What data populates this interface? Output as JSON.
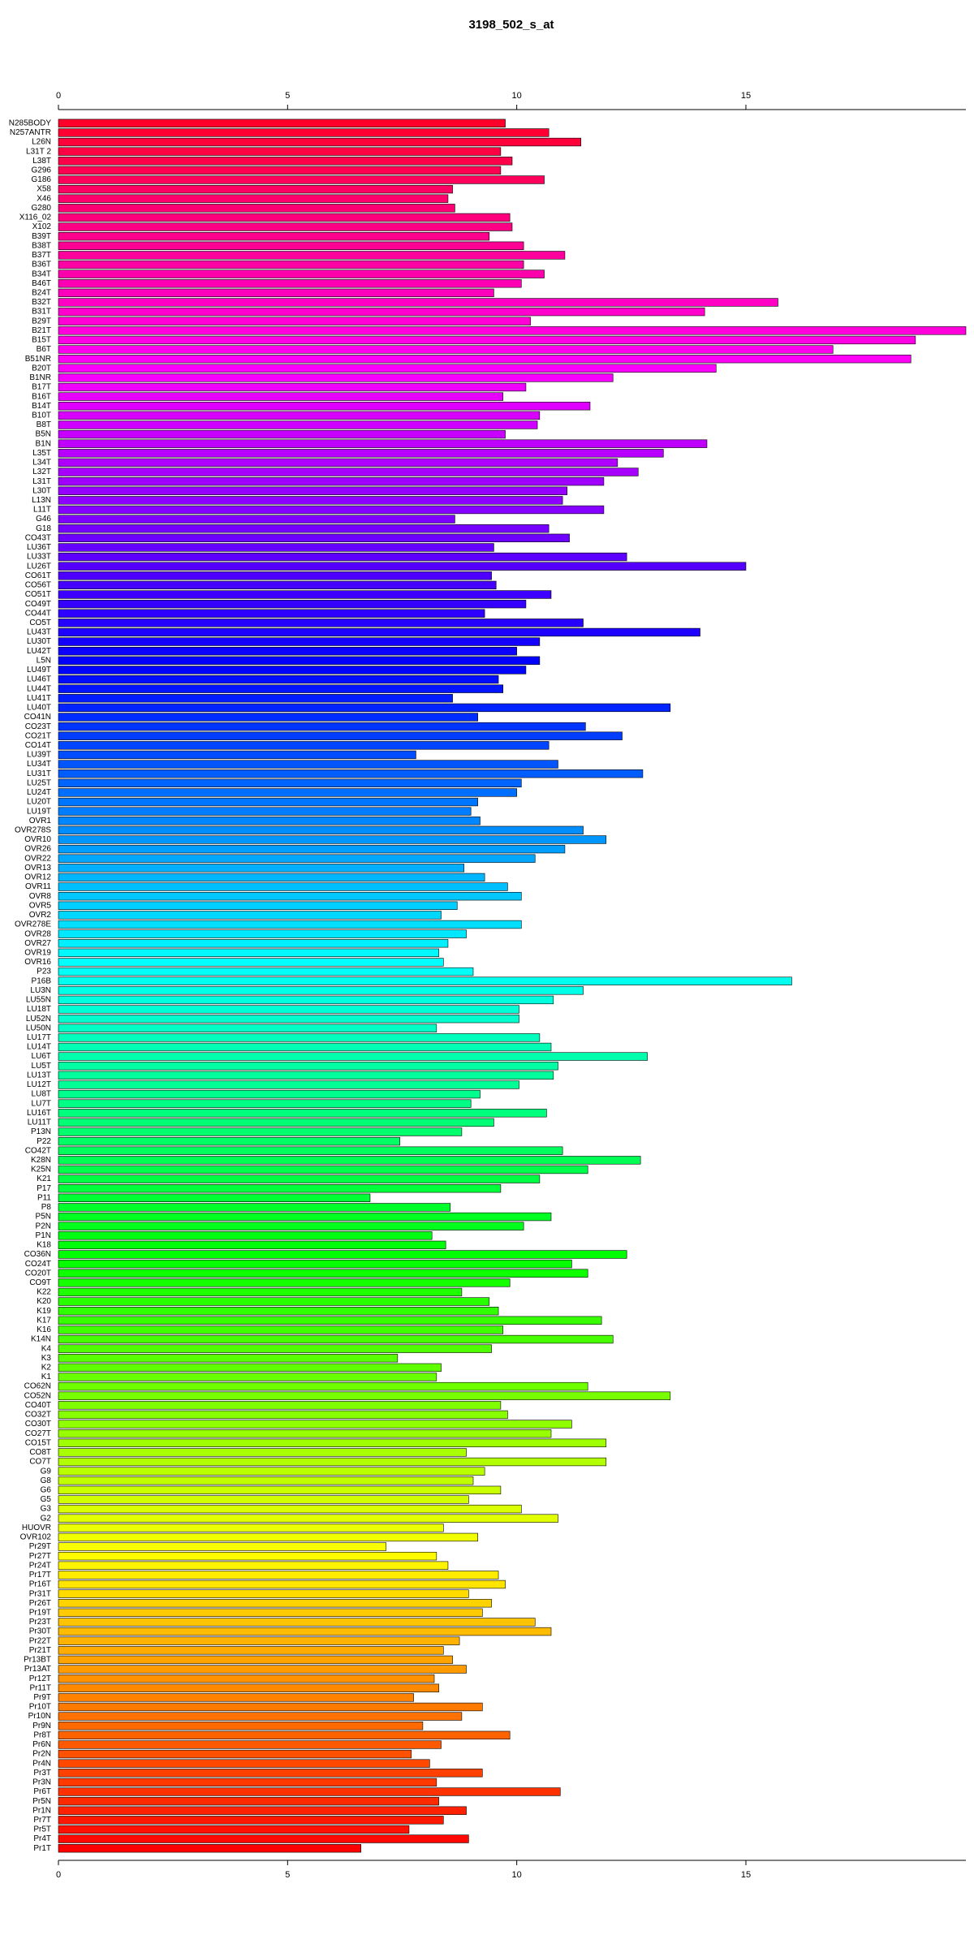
{
  "chart_data": {
    "type": "barh",
    "title": "3198_502_s_at",
    "categories": [
      "N285BODY",
      "N257ANTR",
      "L26N",
      "L31T 2",
      "L38T",
      "G296",
      "G186",
      "X58",
      "X46",
      "G280",
      "X116_02",
      "X102",
      "B39T",
      "B38T",
      "B37T",
      "B36T",
      "B34T",
      "B46T",
      "B24T",
      "B32T",
      "B31T",
      "B29T",
      "B21T",
      "B15T",
      "B6T",
      "B51NR",
      "B20T",
      "B1NR",
      "B17T",
      "B16T",
      "B14T",
      "B10T",
      "B8T",
      "B5N",
      "B1N",
      "L35T",
      "L34T",
      "L32T",
      "L31T",
      "L30T",
      "L13N",
      "L11T",
      "G46",
      "G18",
      "CO43T",
      "LU36T",
      "LU33T",
      "LU26T",
      "CO61T",
      "CO56T",
      "CO51T",
      "CO49T",
      "CO44T",
      "CO5T",
      "LU43T",
      "LU30T",
      "LU42T",
      "L5N",
      "LU49T",
      "LU46T",
      "LU44T",
      "LU41T",
      "LU40T",
      "CO41N",
      "CO23T",
      "CO21T",
      "CO14T",
      "LU39T",
      "LU34T",
      "LU31T",
      "LU25T",
      "LU24T",
      "LU20T",
      "LU19T",
      "OVR1",
      "OVR278S",
      "OVR10",
      "OVR26",
      "OVR22",
      "OVR13",
      "OVR12",
      "OVR11",
      "OVR8",
      "OVR5",
      "OVR2",
      "OVR278E",
      "OVR28",
      "OVR27",
      "OVR19",
      "OVR16",
      "P23",
      "P16B",
      "LU3N",
      "LU55N",
      "LU18T",
      "LU52N",
      "LU50N",
      "LU17T",
      "LU14T",
      "LU6T",
      "LU5T",
      "LU13T",
      "LU12T",
      "LU8T",
      "LU7T",
      "LU16T",
      "LU11T",
      "P13N",
      "P22",
      "CO42T",
      "K28N",
      "K25N",
      "K21",
      "P17",
      "P11",
      "P8",
      "P5N",
      "P2N",
      "P1N",
      "K18",
      "CO36N",
      "CO24T",
      "CO20T",
      "CO9T",
      "K22",
      "K20",
      "K19",
      "K17",
      "K16",
      "K14N",
      "K4",
      "K3",
      "K2",
      "K1",
      "CO62N",
      "CO52N",
      "CO40T",
      "CO32T",
      "CO30T",
      "CO27T",
      "CO15T",
      "CO8T",
      "CO7T",
      "G9",
      "G8",
      "G6",
      "G5",
      "G3",
      "G2",
      "HUOVR",
      "OVR102",
      "Pr29T",
      "Pr27T",
      "Pr24T",
      "Pr17T",
      "Pr16T",
      "Pr31T",
      "Pr26T",
      "Pr19T",
      "Pr23T",
      "Pr30T",
      "Pr22T",
      "Pr21T",
      "Pr13BT",
      "Pr13AT",
      "Pr12T",
      "Pr11T",
      "Pr9T",
      "Pr10T",
      "Pr10N",
      "Pr9N",
      "Pr8T",
      "Pr6N",
      "Pr2N",
      "Pr4N",
      "Pr3T",
      "Pr3N",
      "Pr6T",
      "Pr5N",
      "Pr1N",
      "Pr7T",
      "Pr5T",
      "Pr4T",
      "Pr1T"
    ],
    "values": [
      9.75,
      10.7,
      11.4,
      9.65,
      9.9,
      9.65,
      10.6,
      8.6,
      8.5,
      8.65,
      9.85,
      9.9,
      9.4,
      10.15,
      11.05,
      10.15,
      10.6,
      10.1,
      9.5,
      15.7,
      14.1,
      10.3,
      19.8,
      18.7,
      16.9,
      18.6,
      14.35,
      12.1,
      10.2,
      9.7,
      11.6,
      10.5,
      10.45,
      9.75,
      14.15,
      13.2,
      12.2,
      12.65,
      11.9,
      11.1,
      11.0,
      11.9,
      8.65,
      10.7,
      11.15,
      9.5,
      12.4,
      15.0,
      9.45,
      9.55,
      10.75,
      10.2,
      9.3,
      11.45,
      14.0,
      10.5,
      10.0,
      10.5,
      10.2,
      9.6,
      9.7,
      8.6,
      13.35,
      9.15,
      11.5,
      12.3,
      10.7,
      7.8,
      10.9,
      12.75,
      10.1,
      10.0,
      9.15,
      9.0,
      9.2,
      11.45,
      11.95,
      11.05,
      10.4,
      8.85,
      9.3,
      9.8,
      10.1,
      8.7,
      8.35,
      10.1,
      8.9,
      8.5,
      8.3,
      8.4,
      9.05,
      16.0,
      11.45,
      10.8,
      10.05,
      10.05,
      8.25,
      10.5,
      10.75,
      12.85,
      10.9,
      10.8,
      10.05,
      9.2,
      9.0,
      10.65,
      9.5,
      8.8,
      7.45,
      11.0,
      12.7,
      11.55,
      10.5,
      9.65,
      6.8,
      8.55,
      10.75,
      10.15,
      8.15,
      8.45,
      12.4,
      11.2,
      11.55,
      9.85,
      8.8,
      9.4,
      9.6,
      11.85,
      9.7,
      12.1,
      9.45,
      7.4,
      8.35,
      8.25,
      11.55,
      13.35,
      9.65,
      9.8,
      11.2,
      10.75,
      11.95,
      8.9,
      11.95,
      9.3,
      9.05,
      9.65,
      8.95,
      10.1,
      10.9,
      8.4,
      9.15,
      7.15,
      8.25,
      8.5,
      9.6,
      9.75,
      8.95,
      9.45,
      9.25,
      10.4,
      10.75,
      8.75,
      8.4,
      8.6,
      8.9,
      8.2,
      8.3,
      7.75,
      9.25,
      8.8,
      7.95,
      9.85,
      8.35,
      7.7,
      8.1,
      9.25,
      8.25,
      10.95,
      8.3,
      8.9,
      8.4,
      7.65,
      8.95,
      6.6
    ],
    "color_hue_range": [
      350,
      0
    ],
    "xlim": [
      0,
      19.8
    ],
    "xticks": [
      0,
      5,
      10,
      15
    ]
  }
}
